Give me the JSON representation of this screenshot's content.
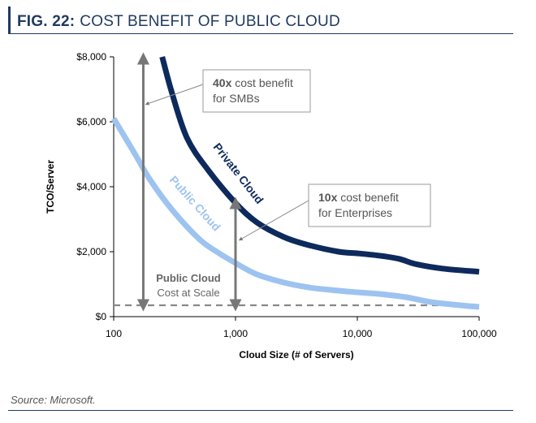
{
  "figure": {
    "number": "FIG. 22:",
    "title": "COST BENEFIT OF PUBLIC CLOUD",
    "source": "Source: Microsoft."
  },
  "chart_data": {
    "type": "line",
    "title": "",
    "xlabel": "Cloud Size (# of Servers)",
    "ylabel": "TCO/Server",
    "x_scale": "log",
    "xlim": [
      100,
      100000
    ],
    "ylim": [
      0,
      8000
    ],
    "x_ticks": [
      {
        "value": 100,
        "label": "100"
      },
      {
        "value": 1000,
        "label": "1,000"
      },
      {
        "value": 10000,
        "label": "10,000"
      },
      {
        "value": 100000,
        "label": "100,000"
      }
    ],
    "y_ticks": [
      {
        "value": 0,
        "label": "$0"
      },
      {
        "value": 2000,
        "label": "$2,000"
      },
      {
        "value": 4000,
        "label": "$4,000"
      },
      {
        "value": 6000,
        "label": "$6,000"
      },
      {
        "value": 8000,
        "label": "$8,000"
      }
    ],
    "grid": false,
    "legend": "none",
    "series": [
      {
        "name": "Private Cloud",
        "color": "#0d2a5c",
        "points": [
          [
            250,
            8000
          ],
          [
            300,
            6900
          ],
          [
            400,
            5500
          ],
          [
            600,
            4500
          ],
          [
            1000,
            3500
          ],
          [
            1500,
            2900
          ],
          [
            2500,
            2450
          ],
          [
            4000,
            2200
          ],
          [
            7000,
            2000
          ],
          [
            10000,
            1950
          ],
          [
            15000,
            1880
          ],
          [
            22000,
            1780
          ],
          [
            30000,
            1620
          ],
          [
            50000,
            1480
          ],
          [
            100000,
            1380
          ]
        ]
      },
      {
        "name": "Public Cloud",
        "color": "#9dc3f0",
        "points": [
          [
            100,
            6100
          ],
          [
            150,
            5000
          ],
          [
            200,
            4200
          ],
          [
            300,
            3300
          ],
          [
            500,
            2400
          ],
          [
            700,
            2000
          ],
          [
            1000,
            1650
          ],
          [
            1500,
            1300
          ],
          [
            2500,
            1050
          ],
          [
            4000,
            900
          ],
          [
            7000,
            800
          ],
          [
            10000,
            750
          ],
          [
            15000,
            700
          ],
          [
            25000,
            600
          ],
          [
            40000,
            450
          ],
          [
            70000,
            350
          ],
          [
            100000,
            300
          ]
        ]
      }
    ],
    "reference_line": {
      "name": "Public Cloud Cost at Scale",
      "value": 350,
      "color": "#888888",
      "label_bold": "Public Cloud",
      "label_text": "Cost at Scale"
    },
    "annotations": [
      {
        "x": 175,
        "y_from": 350,
        "y_to": 7950,
        "bold": "40x",
        "text_line1": " cost benefit",
        "text_line2": "for SMBs"
      },
      {
        "x": 1000,
        "y_from": 350,
        "y_to": 3500,
        "bold": "10x",
        "text_line1": " cost benefit",
        "text_line2": "for Enterprises"
      }
    ]
  }
}
